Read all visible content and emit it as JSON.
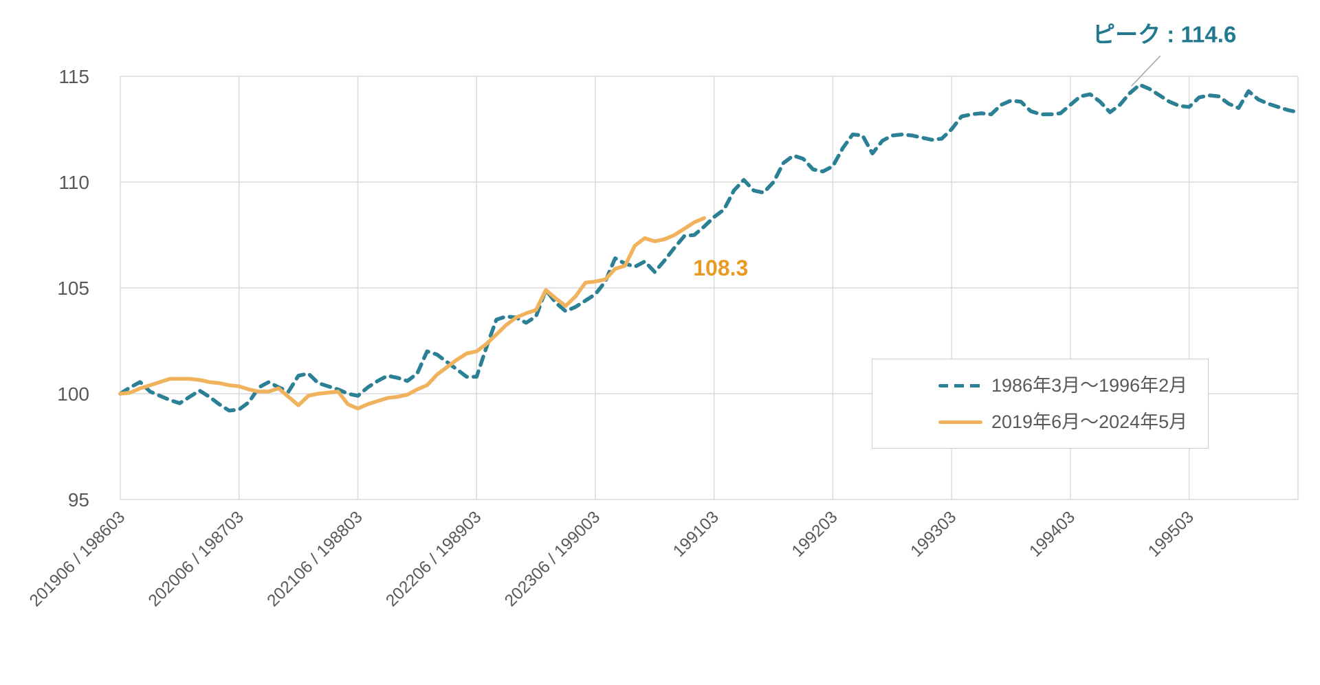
{
  "chart_data": {
    "type": "line",
    "title": "",
    "xlabel": "",
    "ylabel": "",
    "ylim": [
      95,
      115
    ],
    "y_ticks": [
      95,
      100,
      105,
      110,
      115
    ],
    "grid": true,
    "legend_position": "middle-right",
    "axis_color": "#595959",
    "grid_color": "#d9d9d9",
    "leader_line_color": "#a6a6a6",
    "x_ticks": [
      {
        "month": 0,
        "label": "201906 / 198603"
      },
      {
        "month": 12,
        "label": "202006 / 198703"
      },
      {
        "month": 24,
        "label": "202106 / 198803"
      },
      {
        "month": 36,
        "label": "202206 / 198903"
      },
      {
        "month": 48,
        "label": "202306 / 199003"
      },
      {
        "month": 60,
        "label": "199103"
      },
      {
        "month": 72,
        "label": "199203"
      },
      {
        "month": 84,
        "label": "199303"
      },
      {
        "month": 96,
        "label": "199403"
      },
      {
        "month": 108,
        "label": "199503"
      }
    ],
    "series": [
      {
        "name": "1986年3月〜1996年2月",
        "color": "#2b8095",
        "style": "dashed",
        "values": [
          100.0,
          100.3,
          100.55,
          100.1,
          99.9,
          99.7,
          99.55,
          99.85,
          100.15,
          99.85,
          99.5,
          99.2,
          99.25,
          99.6,
          100.3,
          100.55,
          100.3,
          100.1,
          100.85,
          100.95,
          100.5,
          100.35,
          100.2,
          100.0,
          99.9,
          100.3,
          100.6,
          100.85,
          100.75,
          100.6,
          100.95,
          102.0,
          101.85,
          101.5,
          101.15,
          100.8,
          100.8,
          102.2,
          103.5,
          103.65,
          103.6,
          103.35,
          103.65,
          104.9,
          104.3,
          103.9,
          104.1,
          104.4,
          104.7,
          105.3,
          106.4,
          106.15,
          106.0,
          106.25,
          105.75,
          106.3,
          106.9,
          107.45,
          107.5,
          107.9,
          108.35,
          108.7,
          109.6,
          110.1,
          109.6,
          109.5,
          110.0,
          110.9,
          111.25,
          111.1,
          110.6,
          110.5,
          110.75,
          111.6,
          112.25,
          112.2,
          111.35,
          111.95,
          112.2,
          112.25,
          112.2,
          112.1,
          112.0,
          112.05,
          112.5,
          113.1,
          113.2,
          113.25,
          113.2,
          113.65,
          113.85,
          113.8,
          113.35,
          113.2,
          113.2,
          113.25,
          113.65,
          114.05,
          114.15,
          113.8,
          113.3,
          113.65,
          114.2,
          114.6,
          114.4,
          114.1,
          113.8,
          113.6,
          113.55,
          114.0,
          114.1,
          114.05,
          113.7,
          113.5,
          114.3,
          113.9,
          113.7,
          113.55,
          113.4,
          113.3
        ]
      },
      {
        "name": "2019年6月〜2024年5月",
        "color": "#f0b25c",
        "style": "solid",
        "values": [
          100.0,
          100.05,
          100.25,
          100.4,
          100.55,
          100.7,
          100.7,
          100.7,
          100.65,
          100.55,
          100.5,
          100.4,
          100.35,
          100.2,
          100.1,
          100.1,
          100.25,
          99.85,
          99.45,
          99.9,
          100.0,
          100.05,
          100.1,
          99.5,
          99.3,
          99.5,
          99.65,
          99.8,
          99.85,
          99.95,
          100.2,
          100.4,
          100.9,
          101.25,
          101.6,
          101.9,
          102.0,
          102.35,
          102.8,
          103.25,
          103.6,
          103.8,
          103.95,
          104.9,
          104.5,
          104.15,
          104.6,
          105.25,
          105.3,
          105.4,
          105.9,
          106.05,
          107.0,
          107.35,
          107.2,
          107.3,
          107.5,
          107.8,
          108.1,
          108.3
        ]
      }
    ],
    "annotations": [
      {
        "id": "peak",
        "text": "ピーク : 114.6",
        "series": 0,
        "month": 103,
        "value": 114.6,
        "color": "#21798f"
      },
      {
        "id": "end",
        "text": "108.3",
        "series": 1,
        "month": 59,
        "value": 108.3,
        "color": "#e89b23"
      }
    ]
  },
  "legend": {
    "items": [
      {
        "label": "1986年3月〜1996年2月"
      },
      {
        "label": "2019年6月〜2024年5月"
      }
    ]
  }
}
